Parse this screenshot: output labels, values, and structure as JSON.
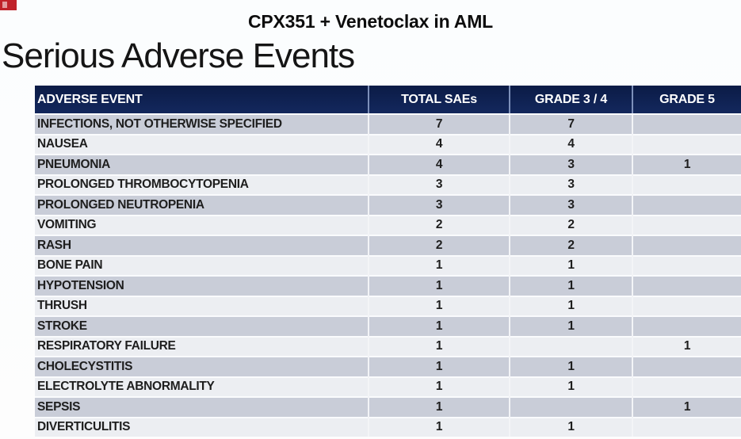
{
  "slide": {
    "title": "CPX351 + Venetoclax in AML",
    "heading": "Serious Adverse Events"
  },
  "table": {
    "columns": [
      "ADVERSE EVENT",
      "TOTAL SAEs",
      "GRADE 3 / 4",
      "GRADE 5"
    ],
    "rows": [
      {
        "event": "INFECTIONS, NOT OTHERWISE SPECIFIED",
        "total_saes": "7",
        "grade_3_4": "7",
        "grade_5": ""
      },
      {
        "event": "NAUSEA",
        "total_saes": "4",
        "grade_3_4": "4",
        "grade_5": ""
      },
      {
        "event": "PNEUMONIA",
        "total_saes": "4",
        "grade_3_4": "3",
        "grade_5": "1"
      },
      {
        "event": "PROLONGED THROMBOCYTOPENIA",
        "total_saes": "3",
        "grade_3_4": "3",
        "grade_5": ""
      },
      {
        "event": "PROLONGED NEUTROPENIA",
        "total_saes": "3",
        "grade_3_4": "3",
        "grade_5": ""
      },
      {
        "event": "VOMITING",
        "total_saes": "2",
        "grade_3_4": "2",
        "grade_5": ""
      },
      {
        "event": "RASH",
        "total_saes": "2",
        "grade_3_4": "2",
        "grade_5": ""
      },
      {
        "event": "BONE PAIN",
        "total_saes": "1",
        "grade_3_4": "1",
        "grade_5": ""
      },
      {
        "event": "HYPOTENSION",
        "total_saes": "1",
        "grade_3_4": "1",
        "grade_5": ""
      },
      {
        "event": "THRUSH",
        "total_saes": "1",
        "grade_3_4": "1",
        "grade_5": ""
      },
      {
        "event": "STROKE",
        "total_saes": "1",
        "grade_3_4": "1",
        "grade_5": ""
      },
      {
        "event": "RESPIRATORY FAILURE",
        "total_saes": "1",
        "grade_3_4": "",
        "grade_5": "1"
      },
      {
        "event": "CHOLECYSTITIS",
        "total_saes": "1",
        "grade_3_4": "1",
        "grade_5": ""
      },
      {
        "event": "ELECTROLYTE ABNORMALITY",
        "total_saes": "1",
        "grade_3_4": "1",
        "grade_5": ""
      },
      {
        "event": "SEPSIS",
        "total_saes": "1",
        "grade_3_4": "",
        "grade_5": "1"
      },
      {
        "event": "DIVERTICULITIS",
        "total_saes": "1",
        "grade_3_4": "1",
        "grade_5": ""
      }
    ]
  },
  "colors": {
    "header_bg": "#12265a",
    "header_bg_top": "#0b1b46",
    "header_divider": "#7d90ba",
    "header_text": "#ffffff",
    "row_dark": "#c9cdd8",
    "row_light": "#eceef2",
    "row_divider": "#fafbfd",
    "text_dark": "#1e1e1e",
    "badge_red": "#c0222a"
  }
}
